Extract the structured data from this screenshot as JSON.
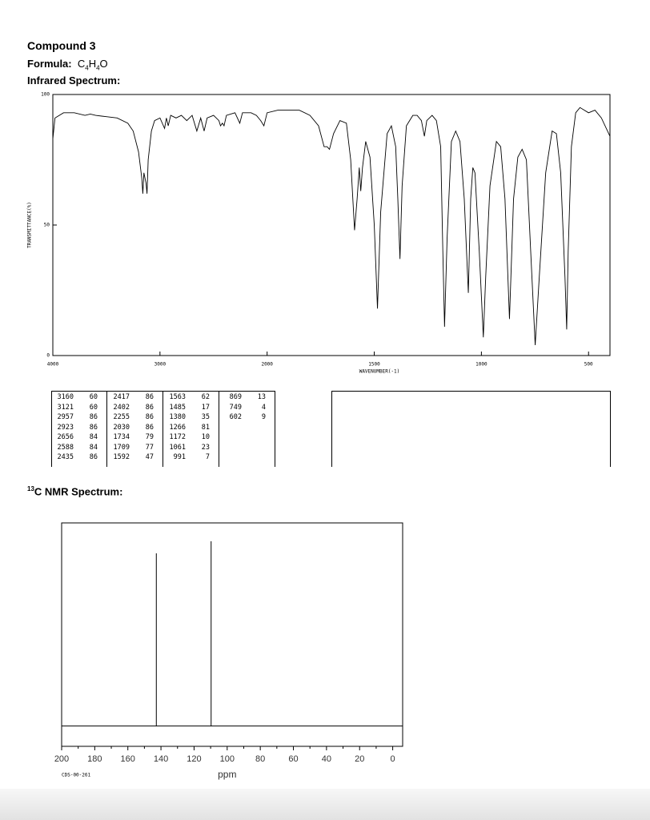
{
  "header": {
    "title": "Compound 3",
    "formula_label": "Formula:",
    "formula": [
      "C",
      "4",
      "H",
      "4",
      "O"
    ],
    "ir_label": "Infrared Spectrum:"
  },
  "ir_peak_table": [
    [
      3160,
      60
    ],
    [
      3121,
      60
    ],
    [
      2957,
      86
    ],
    [
      2923,
      86
    ],
    [
      2656,
      84
    ],
    [
      2588,
      84
    ],
    [
      2435,
      86
    ],
    [
      2417,
      86
    ],
    [
      2402,
      86
    ],
    [
      2255,
      86
    ],
    [
      2030,
      86
    ],
    [
      1734,
      79
    ],
    [
      1709,
      77
    ],
    [
      1592,
      47
    ],
    [
      1563,
      62
    ],
    [
      1485,
      17
    ],
    [
      1380,
      35
    ],
    [
      1266,
      81
    ],
    [
      1172,
      10
    ],
    [
      1061,
      23
    ],
    [
      991,
      7
    ],
    [
      869,
      13
    ],
    [
      749,
      4
    ],
    [
      602,
      9
    ]
  ],
  "nmr_label": {
    "sup": "13",
    "text": "C NMR Spectrum:"
  },
  "chart_data": [
    {
      "type": "line",
      "ylabel": "TRANSMITTANCE(%)",
      "xlabel": "WAVENUMBER(-1)",
      "color": "#000000",
      "x": [
        4000,
        3980,
        3900,
        3800,
        3700,
        3650,
        3600,
        3500,
        3400,
        3300,
        3250,
        3200,
        3170,
        3160,
        3150,
        3130,
        3121,
        3110,
        3080,
        3050,
        3000,
        2957,
        2940,
        2923,
        2900,
        2850,
        2800,
        2750,
        2700,
        2656,
        2620,
        2588,
        2560,
        2500,
        2450,
        2435,
        2417,
        2402,
        2380,
        2300,
        2255,
        2230,
        2150,
        2100,
        2060,
        2030,
        2000,
        1950,
        1900,
        1850,
        1800,
        1760,
        1734,
        1720,
        1709,
        1690,
        1660,
        1630,
        1610,
        1592,
        1580,
        1570,
        1563,
        1555,
        1540,
        1520,
        1500,
        1485,
        1470,
        1440,
        1420,
        1400,
        1390,
        1380,
        1370,
        1350,
        1320,
        1300,
        1280,
        1266,
        1255,
        1230,
        1210,
        1190,
        1180,
        1172,
        1160,
        1140,
        1120,
        1100,
        1080,
        1061,
        1050,
        1040,
        1030,
        1010,
        991,
        980,
        960,
        930,
        910,
        890,
        869,
        850,
        830,
        810,
        790,
        770,
        749,
        730,
        700,
        670,
        650,
        630,
        610,
        602,
        595,
        580,
        560,
        540,
        500,
        470,
        440,
        400
      ],
      "values": [
        83,
        91,
        93,
        93,
        92,
        92.5,
        92,
        91.5,
        91,
        89,
        86,
        78,
        68,
        62,
        70,
        66,
        62,
        75,
        86,
        90,
        91,
        87,
        91,
        88,
        92,
        91,
        92,
        90,
        92,
        86,
        91,
        86,
        91,
        92,
        90,
        88,
        89,
        88,
        92,
        93,
        89,
        93,
        93,
        92,
        90,
        88,
        93,
        94,
        94,
        94,
        92,
        88,
        80,
        80,
        79,
        85,
        90,
        89,
        75,
        48,
        60,
        72,
        63,
        72,
        82,
        76,
        50,
        18,
        55,
        85,
        88,
        80,
        60,
        37,
        65,
        88,
        92,
        92,
        90,
        84,
        90,
        92,
        90,
        80,
        40,
        11,
        45,
        82,
        86,
        82,
        60,
        24,
        60,
        72,
        70,
        40,
        7,
        30,
        65,
        82,
        80,
        60,
        14,
        60,
        76,
        79,
        75,
        40,
        4,
        30,
        70,
        86,
        85,
        70,
        30,
        10,
        40,
        80,
        93,
        95,
        93,
        94,
        91,
        84
      ],
      "xlim": [
        4000,
        400
      ],
      "xticks": [
        4000,
        3000,
        2000,
        1500,
        1000,
        500
      ],
      "ylim": [
        0,
        100
      ],
      "yticks": [
        0,
        50,
        100
      ]
    },
    {
      "type": "stem",
      "xlabel": "ppm",
      "note": "CDS-00-261",
      "color": "#000000",
      "x": [
        142.8,
        109.7
      ],
      "values": [
        85,
        91
      ],
      "xlim": [
        200,
        -6
      ],
      "xticks": [
        200,
        180,
        160,
        140,
        120,
        100,
        80,
        60,
        40,
        20,
        0
      ],
      "ylim": [
        -10,
        100
      ]
    }
  ]
}
